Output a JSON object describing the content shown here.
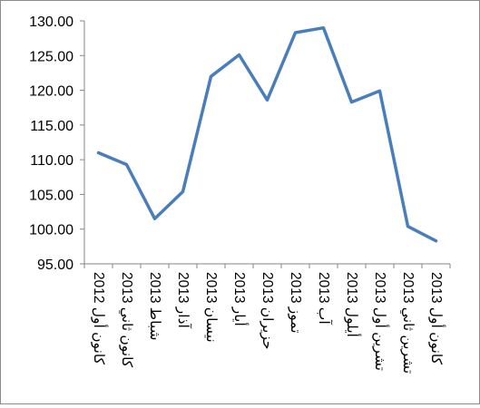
{
  "chart_data": {
    "type": "line",
    "title": "",
    "xlabel": "",
    "ylabel": "",
    "categories": [
      "كانون أول 2012",
      "كانون ثاني 2013",
      "شباط 2013",
      "آذار 2013",
      "نيسان 2013",
      "أيار 2013",
      "حزيران 2013",
      "تموز 2013",
      "آب 2013",
      "أيلول 2013",
      "تشرين أول 2013",
      "تشرين ثاني 2013",
      "كانون أول 2013"
    ],
    "series": [
      {
        "values": [
          111.0,
          109.3,
          101.5,
          105.4,
          122.0,
          125.1,
          118.6,
          128.3,
          129.0,
          118.3,
          119.9,
          100.4,
          98.3
        ]
      }
    ],
    "ylim": [
      95,
      130
    ],
    "yticks": [
      "95.00",
      "100.00",
      "105.00",
      "110.00",
      "115.00",
      "120.00",
      "125.00",
      "130.00"
    ],
    "grid": false,
    "legend": "none",
    "line_color": "#4a7ebb"
  }
}
